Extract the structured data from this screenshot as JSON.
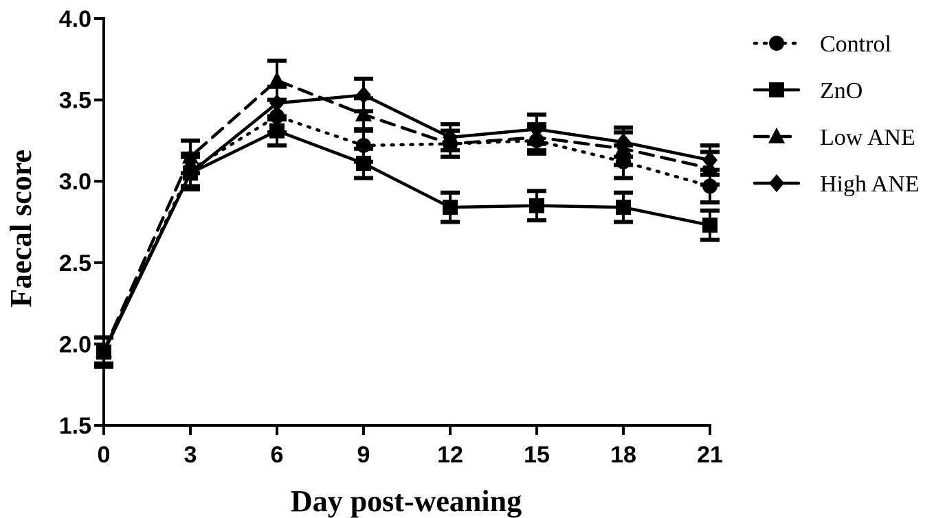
{
  "chart_data": {
    "type": "line",
    "xlabel": "Day post-weaning",
    "ylabel": "Faecal score",
    "x": [
      0,
      3,
      6,
      9,
      12,
      15,
      18,
      21
    ],
    "x_tick_labels": [
      "0",
      "3",
      "6",
      "9",
      "12",
      "15",
      "18",
      "21"
    ],
    "y_tick_labels": [
      "1.5",
      "2.0",
      "2.5",
      "3.0",
      "3.5",
      "4.0"
    ],
    "ylim": [
      1.5,
      4.0
    ],
    "xlim": [
      0,
      21
    ],
    "grid": false,
    "legend_position": "top-right",
    "series": [
      {
        "name": "Control",
        "marker": "circle",
        "line_style": "dotted",
        "values": [
          1.95,
          3.07,
          3.4,
          3.22,
          3.23,
          3.25,
          3.12,
          2.97
        ],
        "error": [
          0.09,
          0.1,
          0.1,
          0.1,
          0.08,
          0.08,
          0.1,
          0.1
        ]
      },
      {
        "name": "ZnO",
        "marker": "square",
        "line_style": "solid",
        "values": [
          1.95,
          3.05,
          3.31,
          3.11,
          2.84,
          2.85,
          2.84,
          2.73
        ],
        "error": [
          0.09,
          0.1,
          0.09,
          0.09,
          0.09,
          0.09,
          0.09,
          0.09
        ]
      },
      {
        "name": "Low ANE",
        "marker": "triangle",
        "line_style": "dashed",
        "values": [
          1.96,
          3.15,
          3.62,
          3.41,
          3.23,
          3.27,
          3.2,
          3.08
        ],
        "error": [
          0.08,
          0.1,
          0.12,
          0.1,
          0.08,
          0.08,
          0.1,
          0.1
        ]
      },
      {
        "name": "High ANE",
        "marker": "diamond",
        "line_style": "solid",
        "values": [
          1.96,
          3.05,
          3.48,
          3.53,
          3.27,
          3.32,
          3.24,
          3.13
        ],
        "error": [
          0.08,
          0.1,
          0.1,
          0.1,
          0.08,
          0.09,
          0.09,
          0.09
        ]
      }
    ]
  }
}
